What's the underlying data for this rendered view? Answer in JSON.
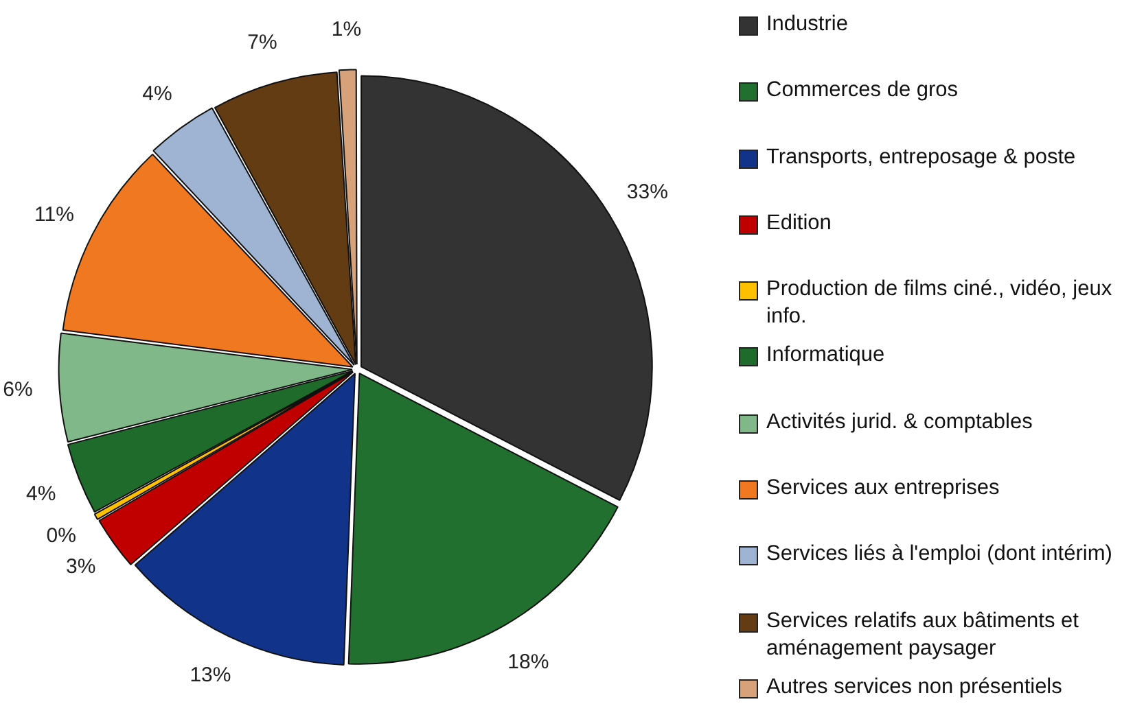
{
  "chart_data": {
    "type": "pie",
    "categories": [
      "Industrie",
      "Commerces de gros",
      "Transports, entreposage & poste",
      "Edition",
      "Production de films ciné., vidéo, jeux info.",
      "Informatique",
      "Activités jurid. & comptables",
      "Services aux entreprises",
      "Services liés à l'emploi (dont intérim)",
      "Services relatifs aux bâtiments et aménagement paysager",
      "Autres services non présentiels"
    ],
    "values": [
      32.6,
      18,
      13,
      3,
      0.4,
      4,
      6,
      11,
      4,
      7,
      1
    ],
    "colors": [
      "#333333",
      "#22702f",
      "#12338a",
      "#c00000",
      "#ffc000",
      "#1f6b2c",
      "#80b88a",
      "#f07820",
      "#9fb3d3",
      "#643c14",
      "#d7a27a"
    ],
    "value_labels": [
      "33%",
      "18%",
      "13%",
      "3%",
      "0%",
      "4%",
      "6%",
      "11%",
      "4%",
      "7%",
      "1%"
    ],
    "legend": "right"
  }
}
